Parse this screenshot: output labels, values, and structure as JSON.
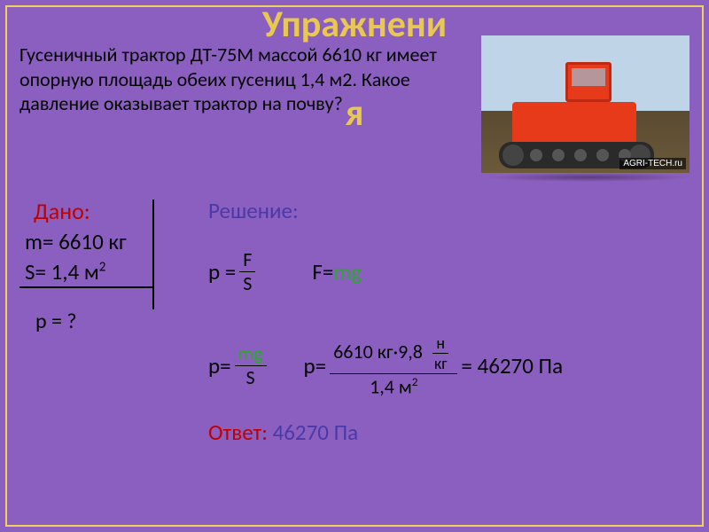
{
  "title_line1": "Упражнени",
  "title_line2": "я",
  "problem_text": "Гусеничный трактор ДТ-75М массой 6610 кг имеет опорную площадь обеих гусениц 1,4 м2. Какое давление оказывает трактор на почву?",
  "watermark": "AGRI-TECH.ru",
  "given": {
    "label": "Дано:",
    "mass": "m= 6610 кг",
    "area_prefix": "S= 1,4 м",
    "area_exp": "2",
    "find": "p = ?"
  },
  "solution": {
    "label": "Решение:",
    "p_eq": "p =",
    "F": "F",
    "S": "S",
    "Fmg_F": "F=",
    "Fmg_mg": "mg",
    "p_eq2": "p=",
    "mg": "mg",
    "S2": "S",
    "p_eq3": "p=",
    "calc_num": "6610 кг·9,8",
    "calc_unit_top": "н",
    "calc_unit_bot": "кг",
    "calc_den": "1,4 м",
    "calc_den_exp": "2",
    "eq_result": " = 46270 Па"
  },
  "answer": {
    "label": "Ответ:",
    "value": " 46270 Па"
  },
  "colors": {
    "background": "#8b5fbf",
    "border": "#f0d060",
    "title": "#e8c850",
    "given_label": "#c00000",
    "solution_label": "#4a3aa8",
    "mg_green": "#2aa82a",
    "tractor_red": "#e63a1a"
  }
}
